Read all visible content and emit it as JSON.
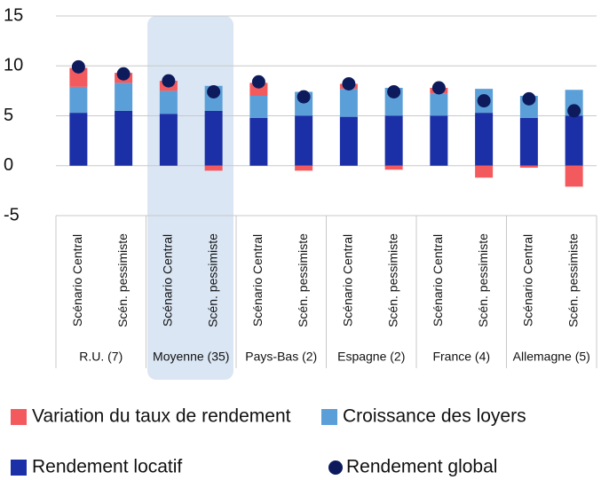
{
  "chart_data": {
    "type": "bar",
    "stacked": true,
    "categories": [
      "Scénario Central",
      "Scén. pessimiste",
      "Scénario Central",
      "Scén. pessimiste",
      "Scénario Central",
      "Scén. pessimiste",
      "Scénario Central",
      "Scén. pessimiste",
      "Scénario Central",
      "Scén. pessimiste",
      "Scénario Central",
      "Scén. pessimiste"
    ],
    "groups": [
      "R.U. (7)",
      "Moyenne (35)",
      "Pays-Bas (2)",
      "Espagne (2)",
      "France (4)",
      "Allemagne (5)"
    ],
    "series": [
      {
        "name": "Rendement locatif",
        "color": "#1b2fa6",
        "values": [
          5.3,
          5.5,
          5.2,
          5.5,
          4.8,
          5.0,
          4.9,
          5.0,
          5.0,
          5.3,
          4.8,
          5.0
        ]
      },
      {
        "name": "Croissance des loyers",
        "color": "#5b9fd8",
        "values": [
          2.6,
          2.8,
          2.3,
          2.5,
          2.2,
          2.4,
          2.8,
          2.8,
          2.2,
          2.4,
          2.2,
          2.6
        ]
      },
      {
        "name": "Variation du taux de rendement",
        "color": "#f25a5e",
        "values": [
          1.9,
          1.0,
          1.0,
          -0.5,
          1.3,
          -0.5,
          0.5,
          -0.4,
          0.6,
          -1.2,
          -0.2,
          -2.1
        ]
      },
      {
        "name": "Rendement global",
        "color": "#0d1a5c",
        "type": "scatter",
        "values": [
          9.9,
          9.2,
          8.5,
          7.4,
          8.4,
          6.9,
          8.2,
          7.4,
          7.8,
          6.5,
          6.7,
          5.5
        ]
      }
    ],
    "ylim": [
      -5,
      15
    ],
    "yticks": [
      -5,
      0,
      5,
      10,
      15
    ],
    "grid": true
  }
}
